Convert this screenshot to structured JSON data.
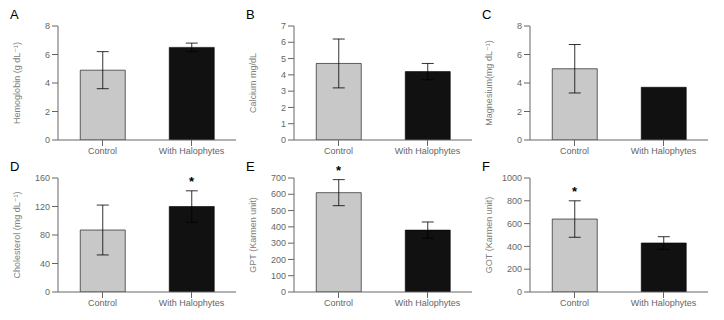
{
  "chart_data": [
    {
      "type": "bar",
      "title": "A",
      "y_label": "Hemoglobin (g dL⁻¹)",
      "categories": [
        "Control",
        "With Halophytes"
      ],
      "values": [
        4.9,
        6.5
      ],
      "errors": [
        1.3,
        0.3
      ],
      "colors": [
        "#c8c8c8",
        "#111111"
      ],
      "ylim": [
        0,
        8
      ],
      "yticks": [
        0,
        2,
        4,
        6,
        8
      ],
      "grid": false
    },
    {
      "type": "bar",
      "title": "B",
      "y_label": "Calcium mg/dL",
      "categories": [
        "Control",
        "With Halophytes"
      ],
      "values": [
        4.7,
        4.2
      ],
      "errors": [
        1.5,
        0.5
      ],
      "colors": [
        "#c8c8c8",
        "#111111"
      ],
      "ylim": [
        0,
        7
      ],
      "yticks": [
        0,
        1,
        2,
        3,
        4,
        5,
        6,
        7
      ],
      "grid": false
    },
    {
      "type": "bar",
      "title": "C",
      "y_label": "Magnesium(mg dL⁻¹)",
      "categories": [
        "Control",
        "With Halophytes"
      ],
      "values": [
        5.0,
        3.7
      ],
      "errors": [
        1.7,
        0.0
      ],
      "colors": [
        "#c8c8c8",
        "#111111"
      ],
      "ylim": [
        0,
        8
      ],
      "yticks": [
        0,
        2,
        4,
        6,
        8
      ],
      "grid": false
    },
    {
      "type": "bar",
      "title": "D",
      "y_label": "Cholesterol (mg dL⁻¹)",
      "categories": [
        "Control",
        "With Halophytes"
      ],
      "values": [
        87,
        120
      ],
      "errors": [
        35,
        22
      ],
      "colors": [
        "#c8c8c8",
        "#111111"
      ],
      "ylim": [
        0,
        160
      ],
      "yticks": [
        0,
        40,
        80,
        120,
        160
      ],
      "grid": false,
      "annotations": [
        {
          "text": "*",
          "category": "With Halophytes"
        }
      ]
    },
    {
      "type": "bar",
      "title": "E",
      "y_label": "GPT (Karmen unit)",
      "categories": [
        "Control",
        "With Halophytes"
      ],
      "values": [
        610,
        380
      ],
      "errors": [
        80,
        50
      ],
      "colors": [
        "#c8c8c8",
        "#111111"
      ],
      "ylim": [
        0,
        700
      ],
      "yticks": [
        0,
        100,
        200,
        300,
        400,
        500,
        600,
        700
      ],
      "grid": false,
      "annotations": [
        {
          "text": "*",
          "category": "Control"
        }
      ]
    },
    {
      "type": "bar",
      "title": "F",
      "y_label": "GOT (Karmen unit)",
      "categories": [
        "Control",
        "With Halophytes"
      ],
      "values": [
        640,
        430
      ],
      "errors": [
        160,
        55
      ],
      "colors": [
        "#c8c8c8",
        "#111111"
      ],
      "ylim": [
        0,
        1000
      ],
      "yticks": [
        0,
        200,
        400,
        600,
        800,
        1000
      ],
      "grid": false,
      "annotations": [
        {
          "text": "*",
          "category": "Control"
        }
      ]
    }
  ]
}
